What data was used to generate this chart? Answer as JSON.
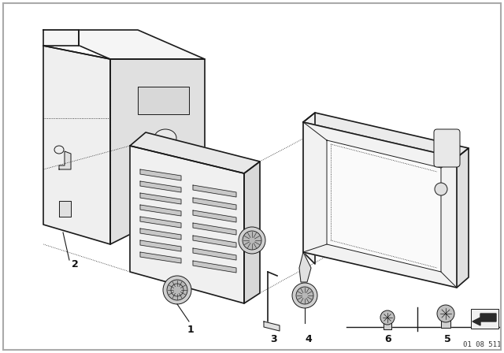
{
  "bg_color": "#ffffff",
  "line_color": "#1a1a1a",
  "fill_light": "#f0f0f0",
  "fill_mid": "#e0e0e0",
  "fill_dark": "#c8c8c8",
  "ref_num": "01 08 511",
  "fig_width": 6.4,
  "fig_height": 4.48,
  "dpi": 100
}
